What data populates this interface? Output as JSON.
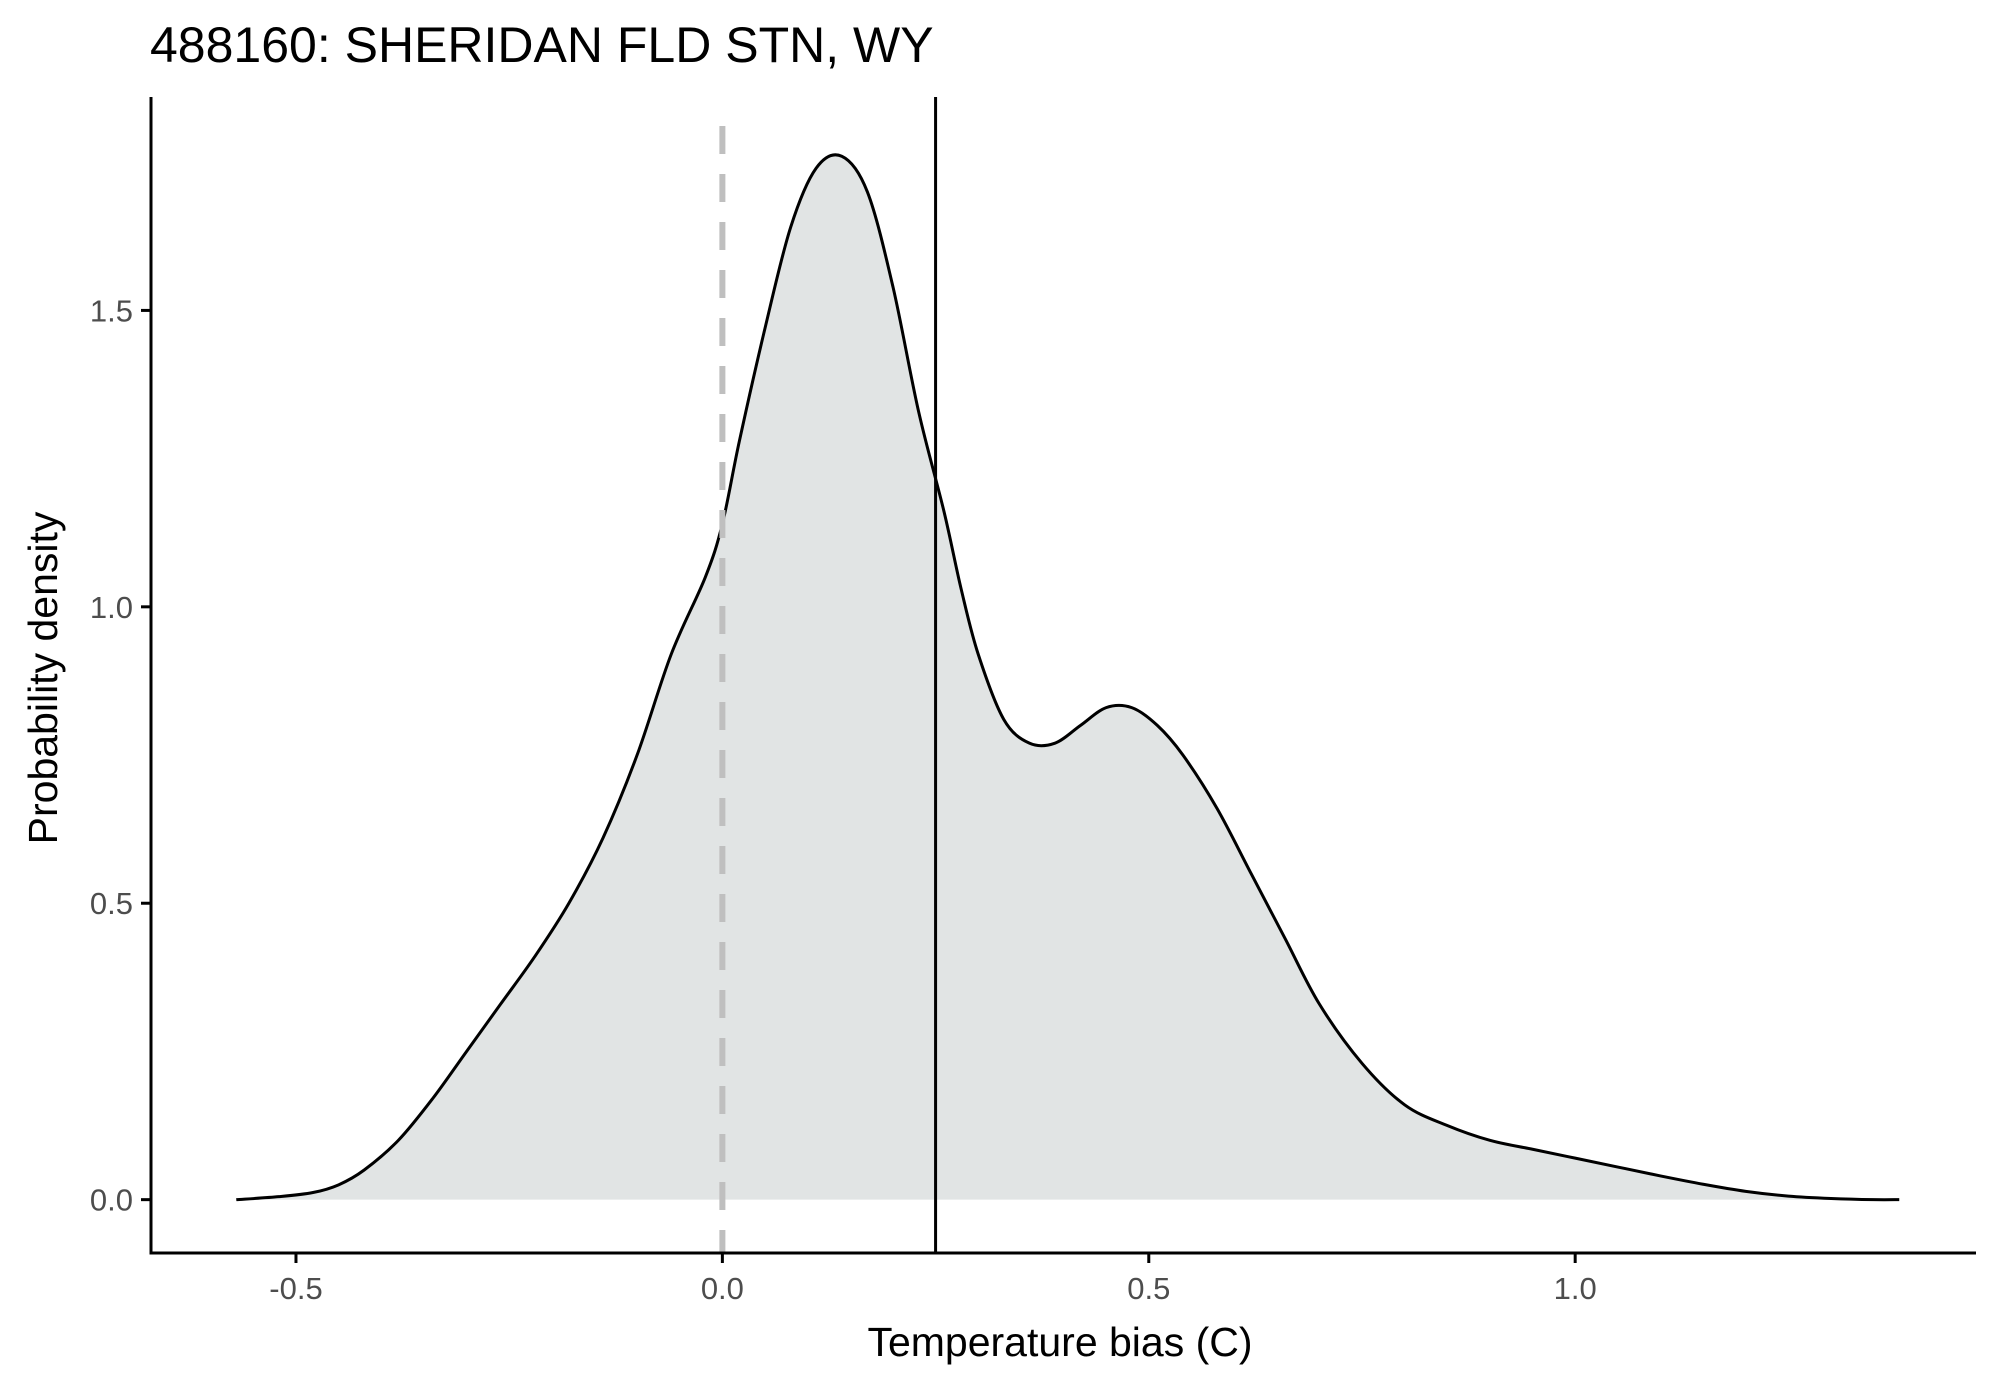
{
  "chart_data": {
    "type": "area",
    "title": "488160: SHERIDAN FLD STN, WY",
    "xlabel": "Temperature bias (C)",
    "ylabel": "Probability density",
    "xlim": [
      -0.67,
      1.47
    ],
    "ylim": [
      -0.09,
      1.86
    ],
    "x_ticks": [
      -0.5,
      0.0,
      0.5,
      1.0
    ],
    "x_tick_labels": [
      "-0.5",
      "0.0",
      "0.5",
      "1.0"
    ],
    "y_ticks": [
      0.0,
      0.5,
      1.0,
      1.5
    ],
    "y_tick_labels": [
      "0.0",
      "0.5",
      "1.0",
      "1.5"
    ],
    "grid": false,
    "legend": "none",
    "series": [
      {
        "x": [
          -0.57,
          -0.52,
          -0.48,
          -0.45,
          -0.42,
          -0.38,
          -0.34,
          -0.3,
          -0.26,
          -0.22,
          -0.18,
          -0.14,
          -0.1,
          -0.06,
          -0.02,
          0.0,
          0.02,
          0.05,
          0.08,
          0.11,
          0.14,
          0.17,
          0.2,
          0.23,
          0.26,
          0.28,
          0.3,
          0.33,
          0.36,
          0.39,
          0.42,
          0.45,
          0.48,
          0.51,
          0.54,
          0.58,
          0.62,
          0.66,
          0.7,
          0.75,
          0.8,
          0.85,
          0.9,
          0.95,
          1.0,
          1.05,
          1.1,
          1.15,
          1.2,
          1.25,
          1.3,
          1.35,
          1.38
        ],
        "y": [
          0.0,
          0.005,
          0.012,
          0.025,
          0.05,
          0.1,
          0.17,
          0.25,
          0.33,
          0.41,
          0.5,
          0.61,
          0.75,
          0.92,
          1.05,
          1.14,
          1.28,
          1.47,
          1.64,
          1.74,
          1.76,
          1.7,
          1.54,
          1.33,
          1.16,
          1.03,
          0.92,
          0.81,
          0.77,
          0.77,
          0.8,
          0.83,
          0.83,
          0.8,
          0.75,
          0.66,
          0.55,
          0.44,
          0.33,
          0.23,
          0.16,
          0.125,
          0.1,
          0.085,
          0.07,
          0.055,
          0.04,
          0.026,
          0.014,
          0.006,
          0.002,
          0.0,
          0.0
        ]
      }
    ],
    "reference_lines": [
      {
        "axis": "x",
        "value": 0.0,
        "style": "dashed",
        "color": "#bfbfbf"
      },
      {
        "axis": "x",
        "value": 0.25,
        "style": "solid",
        "color": "#000000"
      }
    ],
    "colors": {
      "fill": "#e1e4e4",
      "curve": "#000000",
      "axis": "#000000",
      "tick_label": "#4d4d4d"
    }
  }
}
